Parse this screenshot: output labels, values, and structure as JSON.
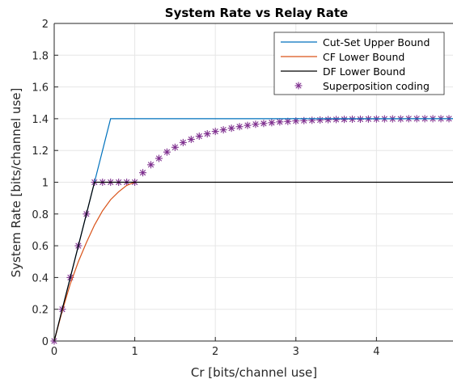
{
  "chart_data": {
    "type": "line",
    "title": "System Rate vs Relay Rate",
    "xlabel": "Cr [bits/channel use]",
    "ylabel": "System Rate [bits/channel use]",
    "xlim": [
      0,
      4.95
    ],
    "ylim": [
      0,
      2
    ],
    "xticks": [
      "0",
      "1",
      "2",
      "3",
      "4"
    ],
    "yticks": [
      "0",
      "0.2",
      "0.4",
      "0.6",
      "0.8",
      "1",
      "1.2",
      "1.4",
      "1.6",
      "1.8",
      "2"
    ],
    "grid": true,
    "legend_position": "top-right",
    "colors": {
      "cutset": "#0072bd",
      "cf": "#d95319",
      "df": "#000000",
      "superposition": "#7e2f8e"
    },
    "series": [
      {
        "name": "Cut-Set Upper Bound",
        "style": "line",
        "x": [
          0,
          0.5,
          0.7,
          4.95
        ],
        "y": [
          0,
          1.0,
          1.4,
          1.4
        ]
      },
      {
        "name": "CF Lower Bound",
        "style": "line",
        "x": [
          0,
          0.1,
          0.2,
          0.3,
          0.4,
          0.5,
          0.6,
          0.7,
          0.8,
          0.9,
          1.0
        ],
        "y": [
          0,
          0.19,
          0.36,
          0.5,
          0.62,
          0.73,
          0.82,
          0.89,
          0.94,
          0.98,
          1.0
        ]
      },
      {
        "name": "DF Lower Bound",
        "style": "line",
        "x": [
          0,
          0.5,
          4.95
        ],
        "y": [
          0,
          1.0,
          1.0
        ]
      },
      {
        "name": "Superposition coding",
        "style": "marker",
        "x": [
          0,
          0.1,
          0.2,
          0.3,
          0.4,
          0.5,
          0.6,
          0.7,
          0.8,
          0.9,
          1.0,
          1.1,
          1.2,
          1.3,
          1.4,
          1.5,
          1.6,
          1.7,
          1.8,
          1.9,
          2.0,
          2.1,
          2.2,
          2.3,
          2.4,
          2.5,
          2.6,
          2.7,
          2.8,
          2.9,
          3.0,
          3.1,
          3.2,
          3.3,
          3.4,
          3.5,
          3.6,
          3.7,
          3.8,
          3.9,
          4.0,
          4.1,
          4.2,
          4.3,
          4.4,
          4.5,
          4.6,
          4.7,
          4.8,
          4.9
        ],
        "y": [
          0,
          0.2,
          0.4,
          0.6,
          0.8,
          1.0,
          1.0,
          1.0,
          1.0,
          1.0,
          1.0,
          1.06,
          1.11,
          1.15,
          1.19,
          1.22,
          1.25,
          1.27,
          1.29,
          1.305,
          1.32,
          1.33,
          1.34,
          1.35,
          1.358,
          1.365,
          1.37,
          1.375,
          1.38,
          1.383,
          1.386,
          1.388,
          1.39,
          1.392,
          1.394,
          1.395,
          1.396,
          1.397,
          1.397,
          1.398,
          1.398,
          1.399,
          1.399,
          1.399,
          1.4,
          1.4,
          1.4,
          1.4,
          1.4,
          1.4
        ]
      }
    ]
  }
}
